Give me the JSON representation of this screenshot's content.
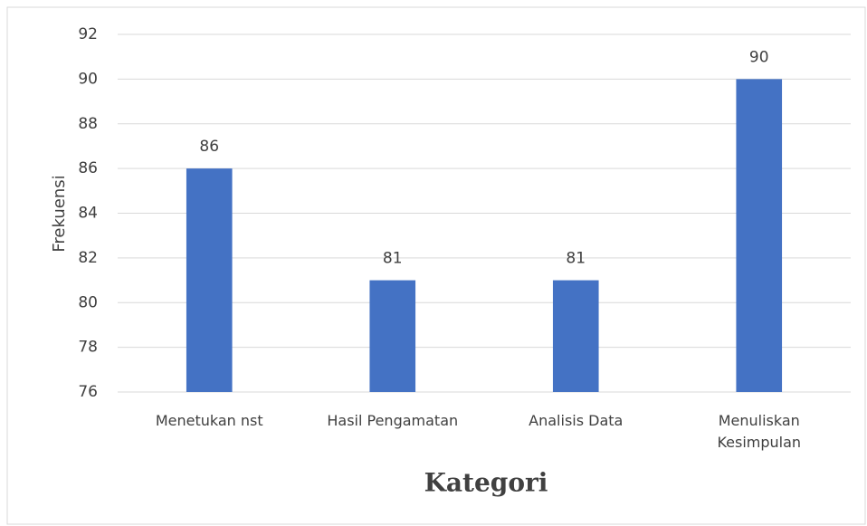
{
  "chart_data": {
    "type": "bar",
    "x_label": "Kategori",
    "y_label": "Frekuensi",
    "categories": [
      "Menetukan nst",
      "Hasil Pengamatan",
      "Analisis Data",
      "Menuliskan Kesimpulan"
    ],
    "values": [
      86,
      81,
      81,
      90
    ],
    "color": "#4472c4",
    "ylim": [
      76,
      92
    ],
    "yticks": [
      76,
      78,
      80,
      82,
      84,
      86,
      88,
      90,
      92
    ],
    "grid": true
  }
}
